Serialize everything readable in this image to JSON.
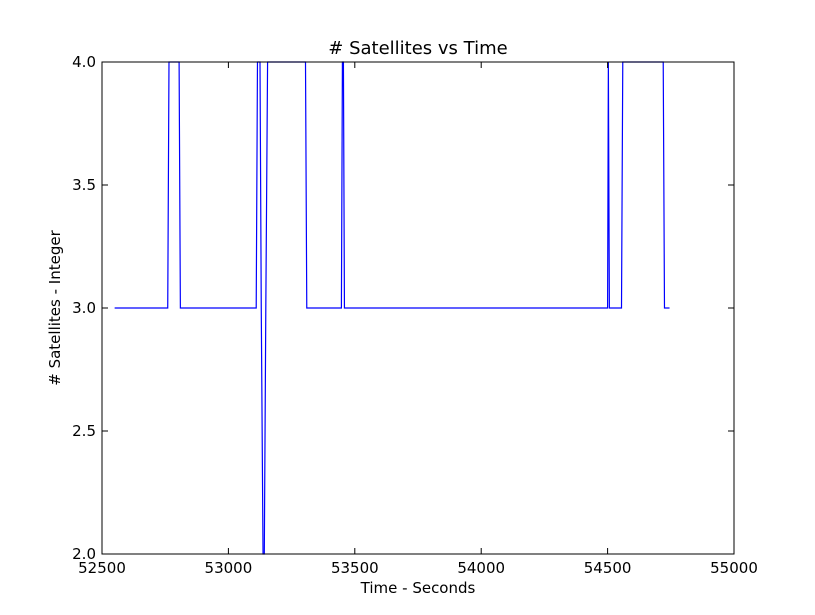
{
  "chart_data": {
    "type": "line",
    "title": "# Satellites vs Time",
    "xlabel": "Time - Seconds",
    "ylabel": "# Satellites - Integer",
    "xlim": [
      52500,
      55000
    ],
    "ylim": [
      2.0,
      4.0
    ],
    "xticks": [
      52500,
      53000,
      53500,
      54000,
      54500,
      55000
    ],
    "yticks": [
      2.0,
      2.5,
      3.0,
      3.5,
      4.0
    ],
    "xtick_labels": [
      "52500",
      "53000",
      "53500",
      "54000",
      "54500",
      "55000"
    ],
    "ytick_labels": [
      "2.0",
      "2.5",
      "3.0",
      "3.5",
      "4.0"
    ],
    "grid": false,
    "series": [
      {
        "color": "#0000ff",
        "x": [
          52550,
          52760,
          52765,
          52805,
          52810,
          53110,
          53115,
          53125,
          53130,
          53137,
          53142,
          53148,
          53155,
          53305,
          53310,
          53447,
          53451,
          53455,
          53459,
          54500,
          54503,
          54507,
          54511,
          54555,
          54560,
          54720,
          54725,
          54745
        ],
        "y": [
          3,
          3,
          4,
          4,
          3,
          3,
          4,
          4,
          3,
          2,
          2,
          3,
          4,
          4,
          3,
          3,
          4,
          4,
          3,
          3,
          4,
          3,
          3,
          3,
          4,
          4,
          3,
          3
        ]
      }
    ]
  }
}
